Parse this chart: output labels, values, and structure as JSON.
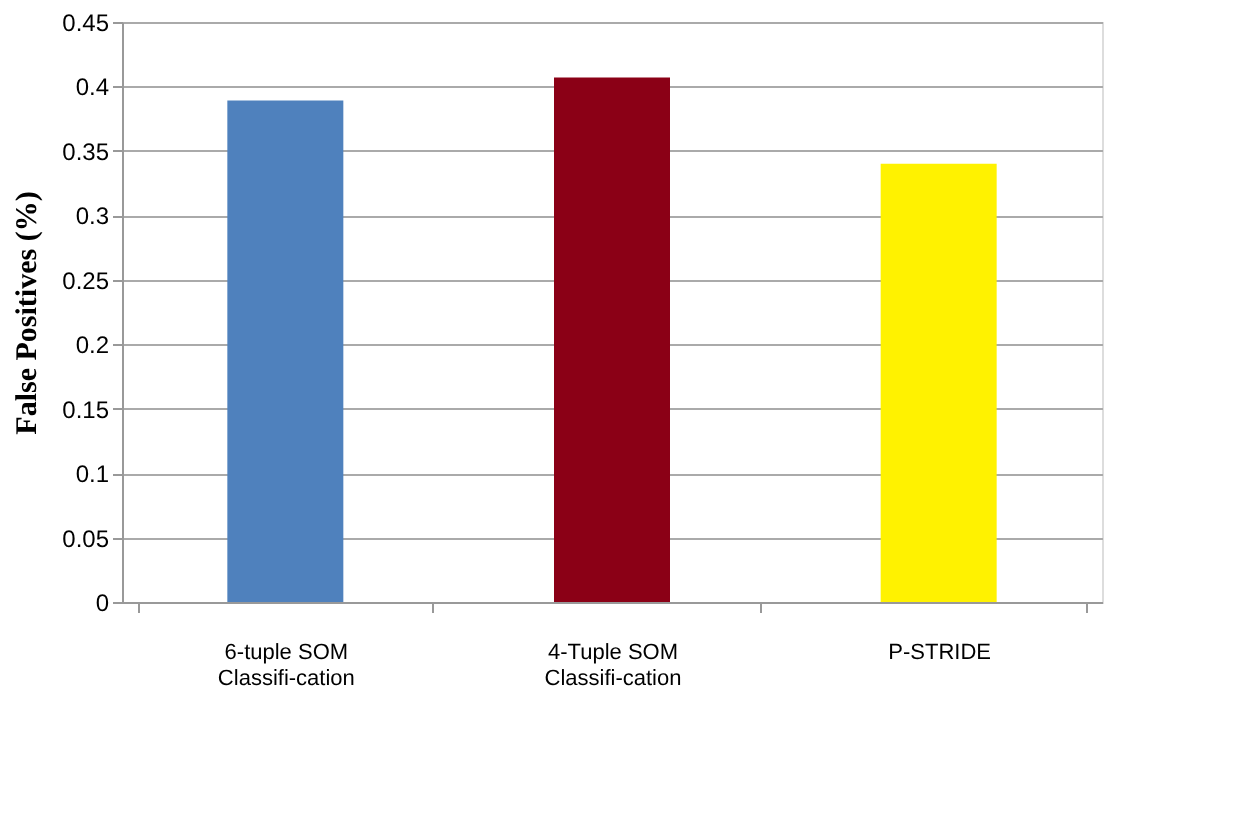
{
  "chart_data": {
    "type": "bar",
    "ylabel": "False Positives (%)",
    "categories": [
      "6-tuple SOM\nClassifi-cation",
      "4-Tuple SOM\nClassifi-cation",
      "P-STRIDE"
    ],
    "values": [
      0.389,
      0.407,
      0.34
    ],
    "colors": [
      "#4f81bd",
      "#8b0016",
      "#fff200"
    ],
    "ylim": [
      0,
      0.45
    ],
    "yticks": [
      0,
      0.05,
      0.1,
      0.15,
      0.2,
      0.25,
      0.3,
      0.35,
      0.4,
      0.45
    ],
    "grid": "y",
    "legend": false
  }
}
